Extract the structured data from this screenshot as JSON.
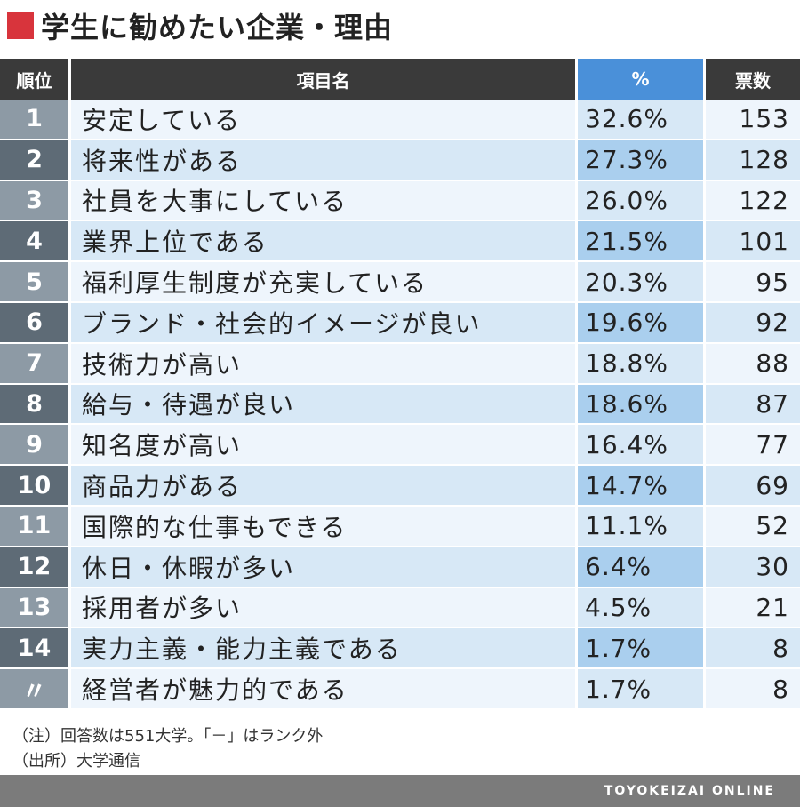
{
  "title": "学生に勧めたい企業・理由",
  "colors": {
    "accent": "#d8343c",
    "header_dark": "#3a3a3a",
    "header_pct": "#4a90d9"
  },
  "chart_data": {
    "type": "table",
    "title": "学生に勧めたい企業・理由",
    "columns": [
      "順位",
      "項目名",
      "%",
      "票数"
    ],
    "rows": [
      {
        "rank": "1",
        "item": "安定している",
        "pct": "32.6%",
        "votes": "153"
      },
      {
        "rank": "2",
        "item": "将来性がある",
        "pct": "27.3%",
        "votes": "128"
      },
      {
        "rank": "3",
        "item": "社員を大事にしている",
        "pct": "26.0%",
        "votes": "122"
      },
      {
        "rank": "4",
        "item": "業界上位である",
        "pct": "21.5%",
        "votes": "101"
      },
      {
        "rank": "5",
        "item": "福利厚生制度が充実している",
        "pct": "20.3%",
        "votes": "95"
      },
      {
        "rank": "6",
        "item": "ブランド・社会的イメージが良い",
        "pct": "19.6%",
        "votes": "92"
      },
      {
        "rank": "7",
        "item": "技術力が高い",
        "pct": "18.8%",
        "votes": "88"
      },
      {
        "rank": "8",
        "item": "給与・待遇が良い",
        "pct": "18.6%",
        "votes": "87"
      },
      {
        "rank": "9",
        "item": "知名度が高い",
        "pct": "16.4%",
        "votes": "77"
      },
      {
        "rank": "10",
        "item": "商品力がある",
        "pct": "14.7%",
        "votes": "69"
      },
      {
        "rank": "11",
        "item": "国際的な仕事もできる",
        "pct": "11.1%",
        "votes": "52"
      },
      {
        "rank": "12",
        "item": "休日・休暇が多い",
        "pct": "6.4%",
        "votes": "30"
      },
      {
        "rank": "13",
        "item": "採用者が多い",
        "pct": "4.5%",
        "votes": "21"
      },
      {
        "rank": "14",
        "item": "実力主義・能力主義である",
        "pct": "1.7%",
        "votes": "8"
      },
      {
        "rank": "〃",
        "item": "経営者が魅力的である",
        "pct": "1.7%",
        "votes": "8"
      }
    ]
  },
  "notes": {
    "note1": "（注）回答数は551大学。「－」はランク外",
    "note2": "（出所）大学通信"
  },
  "footer": {
    "brand": "TOYOKEIZAI ONLINE"
  }
}
